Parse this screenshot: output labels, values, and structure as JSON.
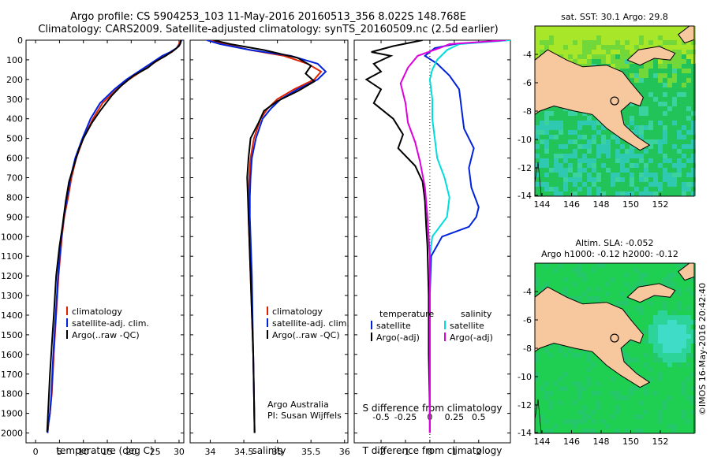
{
  "header": {
    "line1": "Argo profile: CS 5904253_103 11-May-2016 20160513_356 8.022S 148.768E",
    "line2": "Climatology: CARS2009. Satellite-adjusted climatology: synTS_20160509.nc (2.5d earlier)"
  },
  "chart_data": [
    {
      "type": "line",
      "xlabel": "temperature (deg C)",
      "xlim": [
        -2,
        31
      ],
      "ylim": [
        0,
        2050
      ],
      "y_inverted": true,
      "xticks": [
        0,
        5,
        10,
        15,
        20,
        25,
        30
      ],
      "yticks": [
        0,
        100,
        200,
        300,
        400,
        500,
        600,
        700,
        800,
        900,
        1000,
        1100,
        1200,
        1300,
        1400,
        1500,
        1600,
        1700,
        1800,
        1900,
        2000
      ],
      "legend": [
        "climatology",
        "satellite-adj. clim.",
        "Argo(..raw -QC)"
      ],
      "series": [
        {
          "name": "climatology",
          "color": "#dd2200",
          "x": [
            30.2,
            30.0,
            29.5,
            28.5,
            27.0,
            24.5,
            22.0,
            19.5,
            17.0,
            14.0,
            12.0,
            10.0,
            8.5,
            7.5,
            6.8,
            6.0,
            5.5,
            4.8,
            4.3,
            3.8,
            3.4,
            3.0,
            2.7,
            2.5
          ],
          "y": [
            0,
            20,
            40,
            60,
            80,
            120,
            160,
            200,
            250,
            320,
            400,
            500,
            600,
            700,
            800,
            900,
            1000,
            1200,
            1400,
            1600,
            1800,
            1900,
            1950,
            2000
          ]
        },
        {
          "name": "satellite-adj. clim.",
          "color": "#0022dd",
          "x": [
            30.5,
            30.2,
            29.5,
            28.2,
            26.5,
            24.0,
            21.5,
            19.0,
            16.5,
            13.5,
            11.5,
            9.8,
            8.3,
            7.3,
            6.6,
            5.9,
            5.4,
            4.7,
            4.2,
            3.7,
            3.3,
            3.0,
            2.7,
            2.5
          ],
          "y": [
            0,
            20,
            40,
            60,
            80,
            120,
            160,
            200,
            250,
            320,
            400,
            500,
            600,
            700,
            800,
            900,
            1000,
            1200,
            1400,
            1600,
            1800,
            1900,
            1950,
            2000
          ]
        },
        {
          "name": "Argo(..raw -QC)",
          "color": "#000000",
          "x": [
            30.4,
            30.3,
            30.0,
            29.0,
            27.2,
            25.0,
            23.5,
            20.5,
            18.0,
            16.0,
            13.5,
            11.8,
            10.0,
            9.0,
            8.0,
            7.0,
            6.3,
            5.6,
            5.0,
            4.3,
            3.8,
            3.4,
            3.0,
            2.7,
            2.5,
            2.4
          ],
          "y": [
            0,
            15,
            30,
            50,
            80,
            110,
            140,
            180,
            230,
            280,
            360,
            420,
            500,
            560,
            640,
            720,
            820,
            950,
            1050,
            1200,
            1400,
            1550,
            1700,
            1850,
            1950,
            1995
          ]
        }
      ]
    },
    {
      "type": "line",
      "xlabel": "salinity",
      "xlim": [
        33.7,
        36.05
      ],
      "ylim": [
        0,
        2050
      ],
      "y_inverted": true,
      "xticks": [
        34,
        34.5,
        35,
        35.5,
        36
      ],
      "legend": [
        "climatology",
        "satellite-adj. clim.",
        "Argo(..raw -QC)"
      ],
      "annotation": [
        "Argo Australia",
        "PI: Susan Wijffels"
      ],
      "series": [
        {
          "name": "climatology",
          "color": "#dd2200",
          "x": [
            34.0,
            34.2,
            34.6,
            35.1,
            35.45,
            35.65,
            35.55,
            35.25,
            35.0,
            34.85,
            34.75,
            34.65,
            34.6,
            34.58,
            34.57,
            34.57,
            34.58,
            34.6,
            34.62,
            34.64,
            34.65,
            34.66
          ],
          "y": [
            0,
            20,
            50,
            80,
            120,
            160,
            200,
            250,
            300,
            350,
            400,
            500,
            600,
            700,
            800,
            900,
            1000,
            1200,
            1400,
            1600,
            1800,
            2000
          ]
        },
        {
          "name": "satellite-adj. clim.",
          "color": "#0022dd",
          "x": [
            33.95,
            34.15,
            34.6,
            35.2,
            35.6,
            35.72,
            35.6,
            35.3,
            35.05,
            34.9,
            34.78,
            34.68,
            34.62,
            34.6,
            34.59,
            34.59,
            34.6,
            34.62,
            34.63,
            34.64,
            34.65,
            34.66
          ],
          "y": [
            0,
            20,
            50,
            80,
            120,
            160,
            200,
            250,
            300,
            350,
            400,
            500,
            600,
            700,
            800,
            900,
            1000,
            1200,
            1400,
            1600,
            1800,
            2000
          ]
        },
        {
          "name": "Argo(..raw -QC)",
          "color": "#000000",
          "x": [
            34.05,
            34.3,
            34.8,
            35.3,
            35.5,
            35.42,
            35.55,
            35.3,
            35.0,
            34.8,
            34.72,
            34.6,
            34.57,
            34.55,
            34.56,
            34.57,
            34.58,
            34.6,
            34.62,
            34.64,
            34.65,
            34.66
          ],
          "y": [
            0,
            20,
            50,
            90,
            130,
            170,
            210,
            260,
            310,
            360,
            420,
            500,
            600,
            700,
            800,
            900,
            1000,
            1200,
            1400,
            1600,
            1800,
            2000
          ]
        }
      ]
    },
    {
      "type": "line",
      "xlabel": "T difference from climatology",
      "xlabel_top": "S difference from climatology",
      "xlim": [
        -3.1,
        3.3
      ],
      "ylim": [
        0,
        2050
      ],
      "y_inverted": true,
      "xticks": [
        -2,
        -1,
        0,
        1,
        2
      ],
      "xticks_top_positions": [
        -2,
        -1,
        0,
        1,
        2
      ],
      "xticks_top_labels": [
        "-0.5",
        "-0.25",
        "0",
        "0.25",
        "0.5"
      ],
      "legend_titles": [
        "temperature",
        "salinity"
      ],
      "legend": [
        "satellite",
        "Argo(-adj)",
        "satellite",
        "Argo(-adj)"
      ],
      "series": [
        {
          "name": "temperature satellite",
          "color": "#0022dd",
          "x": [
            3.2,
            1.0,
            0.2,
            -0.2,
            0.3,
            0.8,
            1.2,
            1.3,
            1.4,
            1.8,
            1.6,
            1.7,
            2.0,
            1.9,
            1.6,
            0.5,
            0.05,
            0.0,
            0.0,
            0.0,
            0.0
          ],
          "y": [
            0,
            20,
            40,
            80,
            120,
            180,
            250,
            350,
            450,
            550,
            650,
            750,
            850,
            900,
            950,
            1000,
            1100,
            1300,
            1500,
            1800,
            2000
          ]
        },
        {
          "name": "temperature Argo(-adj)",
          "color": "#000000",
          "x": [
            -0.3,
            -1.5,
            -2.4,
            -1.6,
            -2.3,
            -2.0,
            -2.6,
            -2.0,
            -2.3,
            -1.5,
            -1.1,
            -1.3,
            -0.6,
            -0.3,
            -0.2,
            -0.15,
            -0.1,
            -0.05,
            -0.05,
            0.0,
            0.0
          ],
          "y": [
            0,
            30,
            60,
            80,
            120,
            160,
            200,
            250,
            320,
            400,
            480,
            550,
            640,
            720,
            820,
            950,
            1050,
            1300,
            1600,
            1900,
            2000
          ]
        },
        {
          "name": "salinity satellite",
          "color": "#00dddd",
          "x": [
            3.3,
            1.2,
            0.7,
            0.3,
            0.1,
            0.0,
            0.1,
            0.1,
            0.2,
            0.3,
            0.6,
            0.8,
            0.7,
            0.4,
            0.1,
            0.0,
            0.0,
            0.0,
            0.0
          ],
          "y": [
            0,
            20,
            50,
            100,
            150,
            200,
            300,
            400,
            500,
            600,
            700,
            800,
            900,
            950,
            1000,
            1100,
            1400,
            1700,
            2000
          ]
        },
        {
          "name": "salinity Argo(-adj)",
          "color": "#dd00dd",
          "x": [
            3.1,
            0.8,
            0.4,
            -0.5,
            -0.9,
            -1.2,
            -1.0,
            -0.9,
            -0.6,
            -0.4,
            -0.2,
            -0.1,
            0.0,
            0.0,
            0.0
          ],
          "y": [
            0,
            20,
            40,
            80,
            140,
            220,
            320,
            420,
            520,
            620,
            750,
            900,
            1100,
            1500,
            2000
          ]
        }
      ]
    }
  ],
  "ylabels": [
    "0",
    "100",
    "200",
    "300",
    "400",
    "500",
    "600",
    "700",
    "800",
    "900",
    "1000",
    "1100",
    "1200",
    "1300",
    "1400",
    "1500",
    "1600",
    "1700",
    "1800",
    "1900",
    "2000"
  ],
  "maps": [
    {
      "title_lines": [
        "sat. SST: 30.1  Argo: 29.8"
      ],
      "xticks": [
        "144",
        "146",
        "148",
        "150",
        "152"
      ],
      "yticks": [
        "-4",
        "-6",
        "-8",
        "-10",
        "-12",
        "-14"
      ],
      "colors": {
        "ocean": "#22c45a",
        "ocean_warm": "#8be02a",
        "land": "#f7c79e"
      }
    },
    {
      "title_lines": [
        "Altim. SLA: -0.052",
        "Argo h1000: -0.12  h2000: -0.12"
      ],
      "xticks": [
        "144",
        "146",
        "148",
        "150",
        "152"
      ],
      "yticks": [
        "-4",
        "-6",
        "-8",
        "-10",
        "-12",
        "-14"
      ],
      "colors": {
        "ocean": "#1fcf52",
        "ocean_high": "#22dcc8",
        "land": "#f7c79e"
      }
    }
  ],
  "credit": "©IMOS 16-May-2016 20:42:40"
}
